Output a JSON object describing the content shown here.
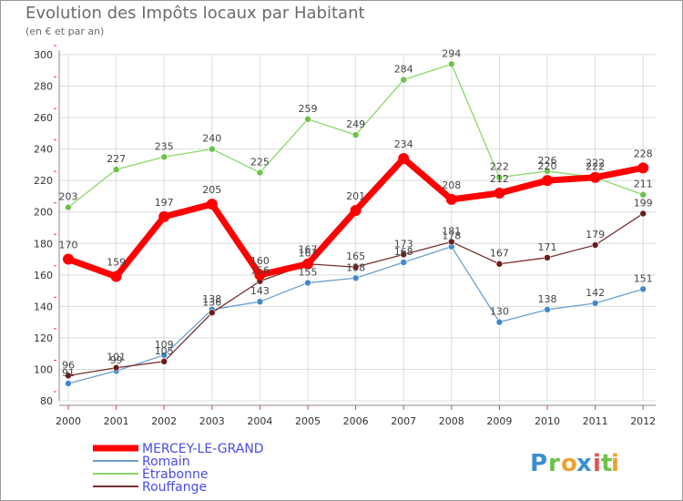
{
  "chart_data": {
    "type": "line",
    "title": "Evolution des Impôts locaux par Habitant",
    "subtitle": "(en € et par an)",
    "xlabel": "",
    "ylabel": "",
    "ylim": [
      80,
      300
    ],
    "y_ticks": [
      80,
      100,
      120,
      140,
      160,
      180,
      200,
      220,
      240,
      260,
      280,
      300
    ],
    "categories": [
      "2000",
      "2001",
      "2002",
      "2003",
      "2004",
      "2005",
      "2006",
      "2007",
      "2008",
      "2009",
      "2010",
      "2011",
      "2012"
    ],
    "grid": true,
    "legend_position": "bottom-left",
    "series": [
      {
        "name": "Étrabonne",
        "color": "#88d86a",
        "point_color": "#6cc24a",
        "width": 1.3,
        "radius": 3.5,
        "values": [
          203,
          227,
          235,
          240,
          225,
          259,
          249,
          284,
          294,
          222,
          226,
          222,
          211
        ],
        "labels": [
          "203",
          "227",
          "235",
          "240",
          "225",
          "259",
          "249",
          "284",
          "294",
          "222",
          "226",
          "222",
          "211"
        ]
      },
      {
        "name": "Romain",
        "color": "#6a9fd0",
        "point_color": "#3f88cf",
        "width": 1.3,
        "radius": 3.5,
        "values": [
          91,
          99,
          109,
          138,
          143,
          155,
          158,
          168,
          178,
          130,
          138,
          142,
          151
        ],
        "labels": [
          "91",
          "99",
          "109",
          "138",
          "143",
          "155",
          "158",
          "168",
          "178",
          "130",
          "138",
          "142",
          "151"
        ]
      },
      {
        "name": "Rouffange",
        "color": "#7a3030",
        "point_color": "#6a1c1c",
        "width": 1.3,
        "radius": 3.5,
        "values": [
          96,
          101,
          105,
          136,
          156,
          167,
          165,
          173,
          181,
          167,
          171,
          179,
          199
        ],
        "labels": [
          "96",
          "101",
          "105",
          "136",
          "156",
          "167",
          "165",
          "173",
          "181",
          "167",
          "171",
          "179",
          "199"
        ]
      },
      {
        "name": "MERCEY-LE-GRAND",
        "color": "#ff0000",
        "point_color": "#ff0000",
        "width": 7,
        "radius": 6,
        "values": [
          170,
          159,
          197,
          205,
          160,
          167,
          201,
          234,
          208,
          212,
          220,
          222,
          228
        ],
        "labels": [
          "170",
          "159",
          "197",
          "205",
          "160",
          "167",
          "201",
          "234",
          "208",
          "212",
          "220",
          "222",
          "228"
        ]
      }
    ],
    "legend": [
      {
        "name": "MERCEY-LE-GRAND",
        "color": "#ff0000",
        "text_color": "#4a4ae8",
        "width": 7
      },
      {
        "name": "Romain",
        "color": "#6a9fd0",
        "text_color": "#4a4ae8",
        "width": 2
      },
      {
        "name": "Étrabonne",
        "color": "#88d86a",
        "text_color": "#4a4ae8",
        "width": 2
      },
      {
        "name": "Rouffange",
        "color": "#7a3030",
        "text_color": "#4a4ae8",
        "width": 2
      }
    ]
  },
  "logo": {
    "letters": [
      "P",
      "r",
      "o",
      "x",
      "i",
      "t",
      "i"
    ],
    "colors": [
      "#3a8fd0",
      "#6cc24a",
      "#f0a030",
      "#3a8fd0",
      "#e85050",
      "#6cc24a",
      "#f0a030"
    ]
  }
}
